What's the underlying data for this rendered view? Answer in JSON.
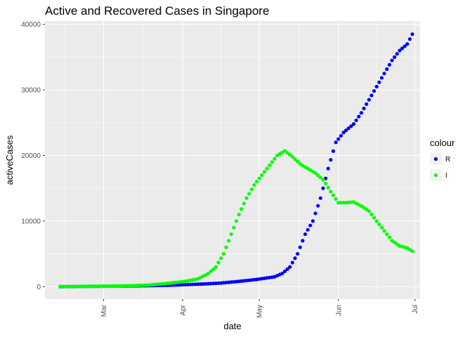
{
  "chart_data": {
    "type": "scatter",
    "title": "Active and Recovered Cases in Singapore",
    "xlabel": "date",
    "ylabel": "activeCases",
    "x_axis": {
      "type": "date",
      "range": [
        "2020-02-07",
        "2020-07-03"
      ],
      "ticks": [
        {
          "date": "2020-03-01",
          "label": "Mar"
        },
        {
          "date": "2020-04-01",
          "label": "Apr"
        },
        {
          "date": "2020-05-01",
          "label": "May"
        },
        {
          "date": "2020-06-01",
          "label": "Jun"
        },
        {
          "date": "2020-07-01",
          "label": "Jul"
        }
      ]
    },
    "y_axis": {
      "range": [
        -1900,
        40500
      ],
      "ticks": [
        {
          "value": 0,
          "label": "0"
        },
        {
          "value": 10000,
          "label": "10000"
        },
        {
          "value": 20000,
          "label": "20000"
        },
        {
          "value": 30000,
          "label": "30000"
        },
        {
          "value": 40000,
          "label": "40000"
        }
      ]
    },
    "grid": true,
    "legend": {
      "title": "colour",
      "position": "right"
    },
    "series": [
      {
        "name": "R",
        "color": "#0000ff",
        "points": [
          {
            "x": "2020-02-13",
            "y": 0
          },
          {
            "x": "2020-02-20",
            "y": 20
          },
          {
            "x": "2020-02-27",
            "y": 50
          },
          {
            "x": "2020-03-05",
            "y": 80
          },
          {
            "x": "2020-03-12",
            "y": 100
          },
          {
            "x": "2020-03-19",
            "y": 150
          },
          {
            "x": "2020-03-26",
            "y": 200
          },
          {
            "x": "2020-04-02",
            "y": 300
          },
          {
            "x": "2020-04-09",
            "y": 400
          },
          {
            "x": "2020-04-16",
            "y": 550
          },
          {
            "x": "2020-04-23",
            "y": 800
          },
          {
            "x": "2020-04-30",
            "y": 1100
          },
          {
            "x": "2020-05-07",
            "y": 1500
          },
          {
            "x": "2020-05-10",
            "y": 2000
          },
          {
            "x": "2020-05-13",
            "y": 3000
          },
          {
            "x": "2020-05-16",
            "y": 5000
          },
          {
            "x": "2020-05-19",
            "y": 8000
          },
          {
            "x": "2020-05-22",
            "y": 10000
          },
          {
            "x": "2020-05-25",
            "y": 13500
          },
          {
            "x": "2020-05-28",
            "y": 18000
          },
          {
            "x": "2020-05-31",
            "y": 22000
          },
          {
            "x": "2020-06-03",
            "y": 23500
          },
          {
            "x": "2020-06-07",
            "y": 24800
          },
          {
            "x": "2020-06-10",
            "y": 26500
          },
          {
            "x": "2020-06-13",
            "y": 28500
          },
          {
            "x": "2020-06-16",
            "y": 30500
          },
          {
            "x": "2020-06-19",
            "y": 32500
          },
          {
            "x": "2020-06-22",
            "y": 34500
          },
          {
            "x": "2020-06-25",
            "y": 36000
          },
          {
            "x": "2020-06-28",
            "y": 37000
          },
          {
            "x": "2020-06-30",
            "y": 38500
          }
        ]
      },
      {
        "name": "I",
        "color": "#00ff00",
        "points": [
          {
            "x": "2020-02-13",
            "y": 0
          },
          {
            "x": "2020-02-20",
            "y": 30
          },
          {
            "x": "2020-02-27",
            "y": 60
          },
          {
            "x": "2020-03-05",
            "y": 90
          },
          {
            "x": "2020-03-12",
            "y": 150
          },
          {
            "x": "2020-03-19",
            "y": 250
          },
          {
            "x": "2020-03-26",
            "y": 500
          },
          {
            "x": "2020-04-02",
            "y": 800
          },
          {
            "x": "2020-04-07",
            "y": 1200
          },
          {
            "x": "2020-04-11",
            "y": 2000
          },
          {
            "x": "2020-04-14",
            "y": 3000
          },
          {
            "x": "2020-04-17",
            "y": 5000
          },
          {
            "x": "2020-04-20",
            "y": 8000
          },
          {
            "x": "2020-04-23",
            "y": 11000
          },
          {
            "x": "2020-04-26",
            "y": 13500
          },
          {
            "x": "2020-04-29",
            "y": 15500
          },
          {
            "x": "2020-05-02",
            "y": 17000
          },
          {
            "x": "2020-05-05",
            "y": 18500
          },
          {
            "x": "2020-05-08",
            "y": 20000
          },
          {
            "x": "2020-05-11",
            "y": 20700
          },
          {
            "x": "2020-05-14",
            "y": 19800
          },
          {
            "x": "2020-05-17",
            "y": 18700
          },
          {
            "x": "2020-05-20",
            "y": 18000
          },
          {
            "x": "2020-05-23",
            "y": 17300
          },
          {
            "x": "2020-05-26",
            "y": 16300
          },
          {
            "x": "2020-05-29",
            "y": 14500
          },
          {
            "x": "2020-06-01",
            "y": 12800
          },
          {
            "x": "2020-06-04",
            "y": 12800
          },
          {
            "x": "2020-06-07",
            "y": 12900
          },
          {
            "x": "2020-06-10",
            "y": 12300
          },
          {
            "x": "2020-06-13",
            "y": 11500
          },
          {
            "x": "2020-06-16",
            "y": 10000
          },
          {
            "x": "2020-06-19",
            "y": 8500
          },
          {
            "x": "2020-06-22",
            "y": 7000
          },
          {
            "x": "2020-06-25",
            "y": 6200
          },
          {
            "x": "2020-06-28",
            "y": 5900
          },
          {
            "x": "2020-06-30",
            "y": 5400
          }
        ]
      }
    ]
  }
}
